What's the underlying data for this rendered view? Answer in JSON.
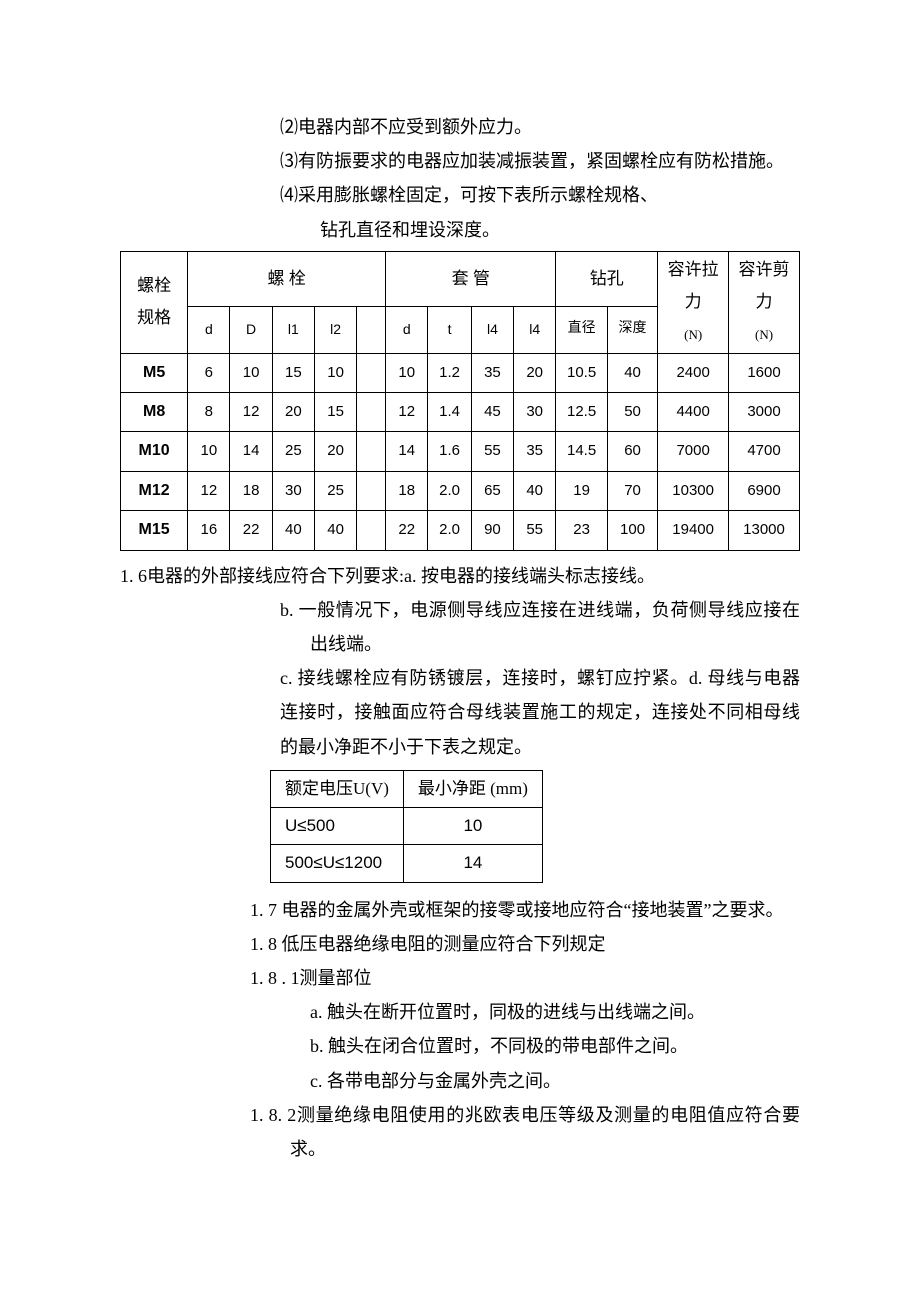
{
  "paragraphs": {
    "p2": "⑵电器内部不应受到额外应力。",
    "p3": "⑶有防振要求的电器应加装减振装置，紧固螺栓应有防松措施。",
    "p4a": "⑷采用膨胀螺栓固定，可按下表所示螺栓规格、",
    "p4b": "钻孔直径和埋设深度。",
    "p16a": "1. 6电器的外部接线应符合下列要求:a. 按电器的接线端头标志接线。",
    "p16b": "b. 一般情况下，电源侧导线应连接在进线端，负荷侧导线应接在出线端。",
    "p16c": "c. 接线螺栓应有防锈镀层，连接时，螺钉应拧紧。d. 母线与电器连接时，接触面应符合母线装置施工的规定，连接处不同相母线的最小净距不小于下表之规定。",
    "p17": "1. 7  电器的金属外壳或框架的接零或接地应符合“接地装置”之要求。",
    "p18": "1. 8  低压电器绝缘电阻的测量应符合下列规定",
    "p181": "1. 8  . 1测量部位",
    "p181a": "a. 触头在断开位置时，同极的进线与出线端之间。",
    "p181b": "b. 触头在闭合位置时，不同极的带电部件之间。",
    "p181c": "c. 各带电部分与金属外壳之间。",
    "p182": "1. 8. 2测量绝缘电阻使用的兆欧表电压等级及测量的电阻值应符合要求。"
  },
  "bolt_table": {
    "corner_label_1": "螺栓",
    "corner_label_2": "规格",
    "group_headers": [
      "螺        栓",
      "套        管",
      "钻孔"
    ],
    "tensile_header": "容许拉力",
    "shear_header": "容许剪力",
    "unit": "(N)",
    "sub_headers_bolt": [
      "d",
      "D",
      "l1",
      "l2",
      ""
    ],
    "sub_headers_sleeve": [
      "d",
      "t",
      "l4",
      "l4"
    ],
    "sub_headers_drill": [
      "直径",
      "深度"
    ],
    "rows": [
      {
        "label": "M5",
        "bolt": [
          "6",
          "10",
          "15",
          "10",
          ""
        ],
        "sleeve": [
          "10",
          "1.2",
          "35",
          "20"
        ],
        "drill": [
          "10.5",
          "40"
        ],
        "tensile": "2400",
        "shear": "1600"
      },
      {
        "label": "M8",
        "bolt": [
          "8",
          "12",
          "20",
          "15",
          ""
        ],
        "sleeve": [
          "12",
          "1.4",
          "45",
          "30"
        ],
        "drill": [
          "12.5",
          "50"
        ],
        "tensile": "4400",
        "shear": "3000"
      },
      {
        "label": "M10",
        "bolt": [
          "10",
          "14",
          "25",
          "20",
          ""
        ],
        "sleeve": [
          "14",
          "1.6",
          "55",
          "35"
        ],
        "drill": [
          "14.5",
          "60"
        ],
        "tensile": "7000",
        "shear": "4700"
      },
      {
        "label": "M12",
        "bolt": [
          "12",
          "18",
          "30",
          "25",
          ""
        ],
        "sleeve": [
          "18",
          "2.0",
          "65",
          "40"
        ],
        "drill": [
          "19",
          "70"
        ],
        "tensile": "10300",
        "shear": "6900"
      },
      {
        "label": "M15",
        "bolt": [
          "16",
          "22",
          "40",
          "40",
          ""
        ],
        "sleeve": [
          "22",
          "2.0",
          "90",
          "55"
        ],
        "drill": [
          "23",
          "100"
        ],
        "tensile": "19400",
        "shear": "13000"
      }
    ],
    "col_widths": {
      "rowhead": "58px",
      "bolt": [
        "40px",
        "40px",
        "40px",
        "40px",
        "28px"
      ],
      "sleeve": [
        "40px",
        "40px",
        "40px",
        "40px"
      ],
      "drill": [
        "48px",
        "48px"
      ],
      "tensile": "70px",
      "shear": "70px"
    }
  },
  "volt_table": {
    "headers": [
      "额定电压U(V)",
      "最小净距 (mm)"
    ],
    "rows": [
      {
        "u": "U≤500",
        "d": "10"
      },
      {
        "u": "500≤U≤1200",
        "d": "14"
      }
    ]
  }
}
